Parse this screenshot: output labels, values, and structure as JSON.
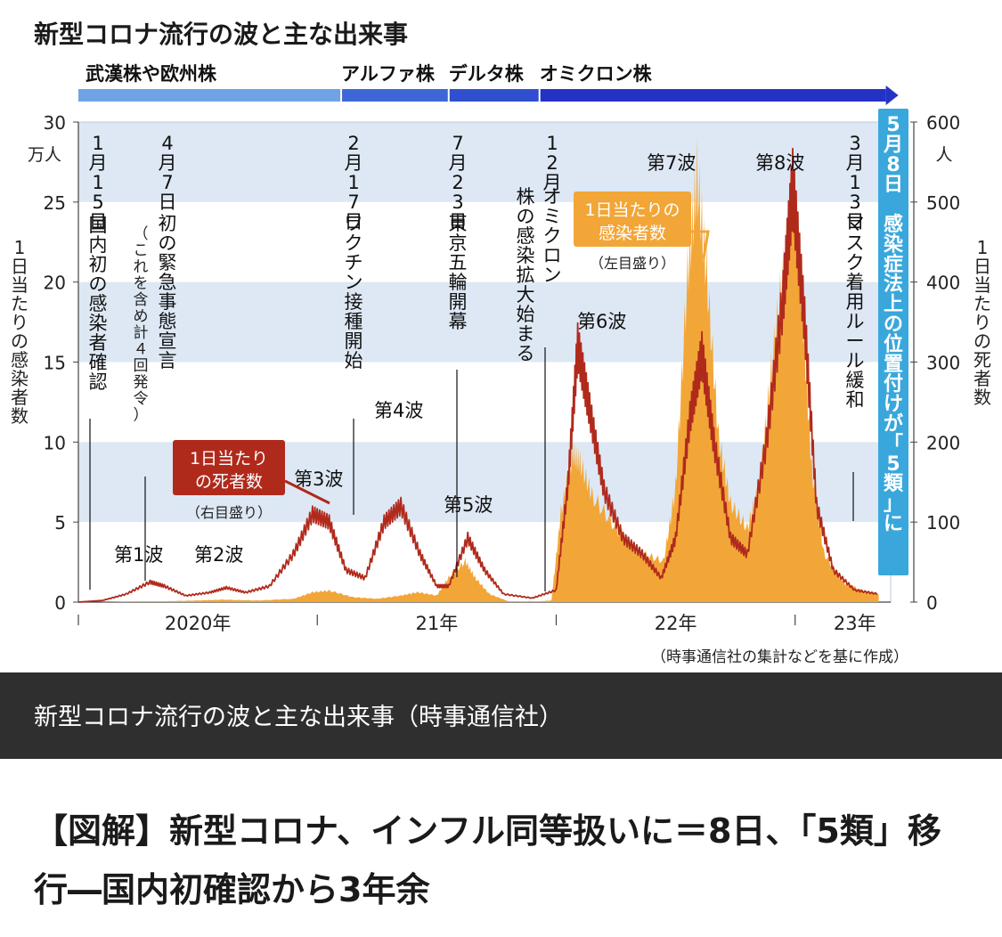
{
  "chart_data": {
    "type": "area",
    "title": "新型コロナ流行の波と主な出来事",
    "y_left_unit": "万人",
    "y_right_unit": "人",
    "y_left_label": "1日当たりの感染者数",
    "y_right_label": "1日当たりの死者数",
    "y_left_lim": [
      0,
      30
    ],
    "y_right_lim": [
      0,
      600
    ],
    "y_left_ticks": [
      "0",
      "5",
      "10",
      "15",
      "20",
      "25",
      "30"
    ],
    "y_right_ticks": [
      "0",
      "100",
      "200",
      "300",
      "400",
      "500",
      "600"
    ],
    "x_range": [
      2020.0,
      2023.4
    ],
    "x_ticks": [
      {
        "x": 2020.5,
        "label": "2020年"
      },
      {
        "x": 2021.5,
        "label": "21年"
      },
      {
        "x": 2022.5,
        "label": "22年"
      },
      {
        "x": 2023.25,
        "label": "23年"
      }
    ],
    "variants": [
      {
        "name": "武漢株や欧州株",
        "x": 2020.0
      },
      {
        "name": "アルファ株",
        "x": 2021.1
      },
      {
        "name": "デルタ株",
        "x": 2021.55
      },
      {
        "name": "オミクロン株",
        "x": 2021.93
      }
    ],
    "series": [
      {
        "name": "1日当たりの感染者数",
        "note": "（左目盛り）",
        "axis": "left",
        "color": "#f2a637",
        "points": [
          [
            2020.0,
            0
          ],
          [
            2020.1,
            0
          ],
          [
            2020.26,
            0.05
          ],
          [
            2020.35,
            0.05
          ],
          [
            2020.5,
            0.1
          ],
          [
            2020.6,
            0.15
          ],
          [
            2020.75,
            0.1
          ],
          [
            2020.9,
            0.2
          ],
          [
            2020.98,
            0.6
          ],
          [
            2021.05,
            0.7
          ],
          [
            2021.15,
            0.3
          ],
          [
            2021.25,
            0.2
          ],
          [
            2021.35,
            0.4
          ],
          [
            2021.42,
            0.6
          ],
          [
            2021.5,
            0.4
          ],
          [
            2021.55,
            1.5
          ],
          [
            2021.62,
            2.5
          ],
          [
            2021.66,
            1.5
          ],
          [
            2021.72,
            0.5
          ],
          [
            2021.8,
            0.05
          ],
          [
            2021.9,
            0.02
          ],
          [
            2021.98,
            0.1
          ],
          [
            2022.02,
            5.5
          ],
          [
            2022.07,
            9.0
          ],
          [
            2022.1,
            8.5
          ],
          [
            2022.15,
            6.5
          ],
          [
            2022.25,
            4.5
          ],
          [
            2022.35,
            3.0
          ],
          [
            2022.45,
            2.5
          ],
          [
            2022.5,
            7.0
          ],
          [
            2022.55,
            20.0
          ],
          [
            2022.59,
            26.0
          ],
          [
            2022.63,
            20.0
          ],
          [
            2022.68,
            10.0
          ],
          [
            2022.73,
            6.0
          ],
          [
            2022.8,
            4.5
          ],
          [
            2022.85,
            7.0
          ],
          [
            2022.9,
            14.0
          ],
          [
            2022.95,
            20.0
          ],
          [
            2022.99,
            25.0
          ],
          [
            2023.03,
            18.0
          ],
          [
            2023.07,
            8.0
          ],
          [
            2023.12,
            3.0
          ],
          [
            2023.2,
            1.2
          ],
          [
            2023.3,
            0.6
          ],
          [
            2023.35,
            0.5
          ]
        ],
        "peaks": [
          {
            "name": "第1波",
            "x": 2020.28
          },
          {
            "name": "第2波",
            "x": 2020.6
          },
          {
            "name": "第3波",
            "x": 2020.98
          },
          {
            "name": "第4波",
            "x": 2021.35
          },
          {
            "name": "第5波",
            "x": 2021.62
          },
          {
            "name": "第6波",
            "x": 2022.08
          },
          {
            "name": "第7波",
            "x": 2022.59
          },
          {
            "name": "第8波",
            "x": 2022.99
          }
        ]
      },
      {
        "name": "1日当たりの死者数",
        "note": "（右目盛り）",
        "axis": "right",
        "color": "#b02a1c",
        "points": [
          [
            2020.0,
            0
          ],
          [
            2020.1,
            2
          ],
          [
            2020.2,
            10
          ],
          [
            2020.3,
            25
          ],
          [
            2020.36,
            20
          ],
          [
            2020.45,
            8
          ],
          [
            2020.55,
            12
          ],
          [
            2020.62,
            18
          ],
          [
            2020.7,
            12
          ],
          [
            2020.8,
            20
          ],
          [
            2020.9,
            60
          ],
          [
            2020.98,
            110
          ],
          [
            2021.05,
            100
          ],
          [
            2021.12,
            40
          ],
          [
            2021.2,
            30
          ],
          [
            2021.28,
            100
          ],
          [
            2021.35,
            120
          ],
          [
            2021.43,
            60
          ],
          [
            2021.5,
            20
          ],
          [
            2021.55,
            20
          ],
          [
            2021.63,
            80
          ],
          [
            2021.7,
            40
          ],
          [
            2021.78,
            10
          ],
          [
            2021.9,
            5
          ],
          [
            2022.0,
            15
          ],
          [
            2022.05,
            150
          ],
          [
            2022.09,
            320
          ],
          [
            2022.14,
            240
          ],
          [
            2022.2,
            140
          ],
          [
            2022.28,
            80
          ],
          [
            2022.36,
            60
          ],
          [
            2022.44,
            30
          ],
          [
            2022.5,
            80
          ],
          [
            2022.56,
            230
          ],
          [
            2022.61,
            310
          ],
          [
            2022.66,
            200
          ],
          [
            2022.73,
            80
          ],
          [
            2022.8,
            60
          ],
          [
            2022.88,
            200
          ],
          [
            2022.95,
            380
          ],
          [
            2022.99,
            520
          ],
          [
            2023.04,
            350
          ],
          [
            2023.09,
            120
          ],
          [
            2023.16,
            40
          ],
          [
            2023.25,
            15
          ],
          [
            2023.35,
            10
          ]
        ]
      }
    ],
    "events": [
      {
        "date": "1月15日",
        "text": "国内初の感染者確認",
        "x": 2020.04
      },
      {
        "date": "4月7日",
        "text": "初の緊急事態宣言",
        "sub": "（これを含め計４回発令）",
        "x": 2020.27
      },
      {
        "date": "2月17日",
        "text": "ワクチン接種開始",
        "x": 2021.13
      },
      {
        "date": "7月23日",
        "text": "東京五輪開幕",
        "x": 2021.56
      },
      {
        "date": "12月",
        "text": "オミクロン株の感染拡大始まる",
        "x": 2021.94
      },
      {
        "date": "3月13日",
        "text": "マスク着用ルール緩和",
        "x": 2023.2
      },
      {
        "date": "5月8日",
        "text": "感染症法上の位置付けが「5類」に",
        "x": 2023.35
      }
    ],
    "source": "（時事通信社の集計などを基に作成）"
  },
  "caption": "新型コロナ流行の波と主な出来事（時事通信社）",
  "headline": "【図解】新型コロナ、インフル同等扱いに＝8日、「5類」移行―国内初確認から3年余"
}
